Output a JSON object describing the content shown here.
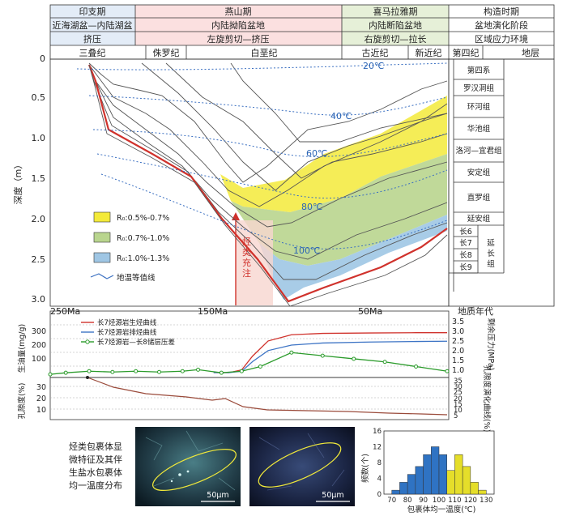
{
  "header": {
    "row1": [
      "印支期",
      "燕山期",
      "喜马拉雅期",
      "构造时期"
    ],
    "row2": [
      "近海湖盆—内陆湖盆",
      "内陆拗陷盆地",
      "内陆断陷盆地",
      "盆地演化阶段"
    ],
    "row3": [
      "挤压",
      "左旋剪切—挤压",
      "右旋剪切—拉长",
      "区域应力环境"
    ],
    "row4": [
      "三叠纪",
      "侏罗纪",
      "白垩纪",
      "古近纪",
      "新近纪",
      "第四纪",
      "地层"
    ]
  },
  "burial": {
    "ylabel": "深度（m）",
    "yticks": [
      "0",
      "0.5",
      "1.0",
      "1.5",
      "2.0",
      "2.5",
      "3.0"
    ],
    "xticks": [
      "250Ma",
      "150Ma",
      "50Ma",
      "地质年代"
    ],
    "isotherms": [
      "20℃",
      "40℃",
      "60℃",
      "80℃",
      "100℃"
    ],
    "strata": [
      "第四系",
      "罗汉洞组",
      "环河组",
      "华池组",
      "洛河—宜君组",
      "安定组",
      "直罗组",
      "延安组"
    ],
    "chang_members": [
      "长6",
      "长7",
      "长8",
      "长9"
    ],
    "chang_group": "延长组",
    "charge_label": "烃类充注",
    "legend": [
      "R₀:0.5%-0.7%",
      "R₀:0.7%-1.0%",
      "R₀:1.0%-1.3%",
      "地温等值线"
    ]
  },
  "middle": {
    "ylabel_left": "生油量(mg/g)",
    "ylabel_right": "剩余压力(MPa)",
    "left_ticks": [
      "300",
      "200",
      "100"
    ],
    "right_ticks": [
      "3.5",
      "3.0",
      "2.5",
      "2.0",
      "1.5",
      "1.0",
      "0.5"
    ],
    "legend": [
      "长7烃源岩生烃曲线",
      "长7烃源岩排烃曲线",
      "长7烃源岩—长8储层压差"
    ]
  },
  "lower": {
    "ylabel_left": "孔隙度(%)",
    "ylabel_right": "孔隙度演化曲线(%)",
    "ticks": [
      "30",
      "20",
      "10"
    ],
    "right_ticks": [
      "35",
      "30",
      "25",
      "20",
      "15",
      "10",
      "5"
    ]
  },
  "bottom": {
    "caption": [
      "烃类包裹体显",
      "微特征及其伴",
      "生盐水包裹体",
      "均一温度分布"
    ],
    "scale1": "50μm",
    "scale2": "50μm",
    "hist_ylabel": "频数(个)",
    "hist_xlabel": "包裹体均一温度(℃)"
  },
  "chart_data": [
    {
      "type": "histogram",
      "xlabel": "包裹体均一温度(℃)",
      "ylabel": "频数(个)",
      "xlim": [
        65,
        135
      ],
      "ylim": [
        0,
        16
      ],
      "x_ticks": [
        70,
        80,
        90,
        100,
        110,
        120,
        130
      ],
      "y_ticks": [
        0,
        4,
        8,
        12,
        16
      ],
      "bins": [
        {
          "from": 70,
          "to": 75,
          "value": 1,
          "color": "#2f73c3"
        },
        {
          "from": 75,
          "to": 80,
          "value": 3,
          "color": "#2f73c3"
        },
        {
          "from": 80,
          "to": 85,
          "value": 5,
          "color": "#2f73c3"
        },
        {
          "from": 85,
          "to": 90,
          "value": 7,
          "color": "#2f73c3"
        },
        {
          "from": 90,
          "to": 95,
          "value": 10,
          "color": "#2f73c3"
        },
        {
          "from": 95,
          "to": 100,
          "value": 12,
          "color": "#2f73c3"
        },
        {
          "from": 100,
          "to": 105,
          "value": 10,
          "color": "#2f73c3"
        },
        {
          "from": 105,
          "to": 110,
          "value": 6,
          "color": "#e5de2a"
        },
        {
          "from": 110,
          "to": 115,
          "value": 10,
          "color": "#e5de2a"
        },
        {
          "from": 115,
          "to": 120,
          "value": 7,
          "color": "#e5de2a"
        },
        {
          "from": 120,
          "to": 125,
          "value": 3,
          "color": "#e5de2a"
        },
        {
          "from": 125,
          "to": 130,
          "value": 1,
          "color": "#e5de2a"
        }
      ]
    },
    {
      "type": "line",
      "series": [
        {
          "name": "长7烃源岩生烃曲线",
          "color": "#d0322c",
          "x": [
            150,
            140,
            132,
            125,
            115,
            100,
            80,
            50,
            20,
            0
          ],
          "y": [
            0,
            0,
            20,
            120,
            230,
            275,
            285,
            288,
            290,
            290
          ]
        },
        {
          "name": "长7烃源岩排烃曲线",
          "color": "#3d74c5",
          "x": [
            150,
            140,
            132,
            125,
            115,
            100,
            80,
            50,
            20,
            0
          ],
          "y": [
            0,
            0,
            10,
            80,
            160,
            200,
            215,
            222,
            226,
            228
          ]
        },
        {
          "name": "长7烃源岩—长8储层压差",
          "color": "#2b9b2b",
          "x": [
            255,
            245,
            230,
            215,
            200,
            185,
            170,
            160,
            145,
            132,
            120,
            100,
            80,
            60,
            40,
            20,
            0
          ],
          "y": [
            0.1,
            0.2,
            0.3,
            0.25,
            0.3,
            0.25,
            0.3,
            0.4,
            0.2,
            0.3,
            0.6,
            1.5,
            1.3,
            1.1,
            0.9,
            0.6,
            0.3
          ]
        }
      ]
    }
  ],
  "colors": {
    "header_yinzhi": "#e3ecf7",
    "header_yanshan": "#fbe0e0",
    "header_ximalaya": "#e6f0d8",
    "ro1": "#f3ea3a",
    "ro2": "#b9d58e",
    "ro3": "#9fc6e4",
    "red": "#d0322c",
    "isotherm": "#3a6fc1"
  }
}
